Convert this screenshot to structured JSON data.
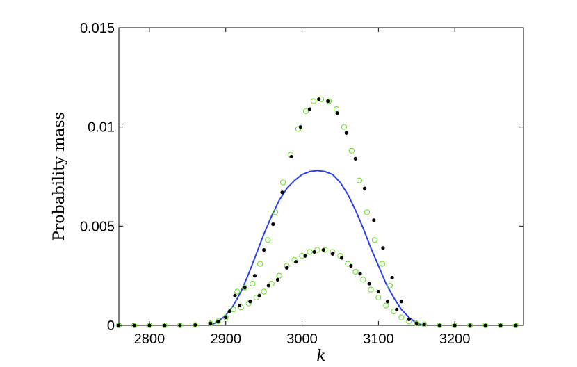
{
  "chart_data": {
    "type": "line",
    "title": "",
    "xlabel": "k",
    "ylabel": "Probability mass",
    "xlim": [
      2760,
      3290
    ],
    "ylim": [
      0,
      0.015
    ],
    "xticks": [
      2800,
      2900,
      3000,
      3100,
      3200
    ],
    "xtick_labels": [
      "2800",
      "2900",
      "3000",
      "3100",
      "3200"
    ],
    "yticks": [
      0,
      0.005,
      0.01,
      0.015
    ],
    "ytick_labels": [
      "0",
      "0.005",
      "0.01",
      "0.015"
    ],
    "grid": false,
    "legend": "none",
    "series": [
      {
        "style": "line",
        "color": "#2b3ff0",
        "points": [
          [
            2880,
            0.0
          ],
          [
            2890,
            0.0002
          ],
          [
            2900,
            0.0005
          ],
          [
            2910,
            0.001
          ],
          [
            2920,
            0.0017
          ],
          [
            2930,
            0.0026
          ],
          [
            2940,
            0.0036
          ],
          [
            2950,
            0.0046
          ],
          [
            2960,
            0.0055
          ],
          [
            2970,
            0.0063
          ],
          [
            2980,
            0.0069
          ],
          [
            2990,
            0.0073
          ],
          [
            3000,
            0.0076
          ],
          [
            3010,
            0.00775
          ],
          [
            3020,
            0.0078
          ],
          [
            3030,
            0.00775
          ],
          [
            3040,
            0.0076
          ],
          [
            3050,
            0.0072
          ],
          [
            3060,
            0.0066
          ],
          [
            3070,
            0.0058
          ],
          [
            3080,
            0.0049
          ],
          [
            3090,
            0.0039
          ],
          [
            3100,
            0.003
          ],
          [
            3110,
            0.0021
          ],
          [
            3120,
            0.0014
          ],
          [
            3130,
            0.0008
          ],
          [
            3140,
            0.0004
          ],
          [
            3150,
            0.0001
          ],
          [
            3160,
            0.0
          ]
        ]
      },
      {
        "style": "circles",
        "color": "#66dd22",
        "points": [
          [
            2760,
            0.0
          ],
          [
            2780,
            0.0
          ],
          [
            2800,
            0.0
          ],
          [
            2820,
            0.0
          ],
          [
            2840,
            0.0
          ],
          [
            2860,
            2e-05
          ],
          [
            2880,
            0.0001
          ],
          [
            2890,
            0.0002
          ],
          [
            2900,
            0.0004
          ],
          [
            2910,
            0.0008
          ],
          [
            2915,
            0.0017
          ],
          [
            2920,
            0.0009
          ],
          [
            2925,
            0.0019
          ],
          [
            2930,
            0.0011
          ],
          [
            2935,
            0.0021
          ],
          [
            2940,
            0.0014
          ],
          [
            2945,
            0.0031
          ],
          [
            2950,
            0.0017
          ],
          [
            2955,
            0.0043
          ],
          [
            2960,
            0.0021
          ],
          [
            2965,
            0.0057
          ],
          [
            2970,
            0.0025
          ],
          [
            2975,
            0.0072
          ],
          [
            2980,
            0.003
          ],
          [
            2985,
            0.0086
          ],
          [
            2990,
            0.0033
          ],
          [
            2995,
            0.0099
          ],
          [
            3000,
            0.0035
          ],
          [
            3005,
            0.0108
          ],
          [
            3010,
            0.0037
          ],
          [
            3015,
            0.0113
          ],
          [
            3020,
            0.0038
          ],
          [
            3025,
            0.0114
          ],
          [
            3030,
            0.0038
          ],
          [
            3035,
            0.0113
          ],
          [
            3040,
            0.0037
          ],
          [
            3045,
            0.0109
          ],
          [
            3050,
            0.0035
          ],
          [
            3055,
            0.01
          ],
          [
            3060,
            0.0031
          ],
          [
            3065,
            0.0088
          ],
          [
            3070,
            0.0027
          ],
          [
            3075,
            0.0073
          ],
          [
            3080,
            0.0023
          ],
          [
            3085,
            0.0057
          ],
          [
            3090,
            0.0018
          ],
          [
            3095,
            0.0043
          ],
          [
            3100,
            0.0014
          ],
          [
            3105,
            0.0031
          ],
          [
            3110,
            0.001
          ],
          [
            3115,
            0.002
          ],
          [
            3120,
            0.0007
          ],
          [
            3130,
            0.0004
          ],
          [
            3140,
            0.0002
          ],
          [
            3150,
            0.0001
          ],
          [
            3160,
            5e-05
          ],
          [
            3180,
            0.0
          ],
          [
            3200,
            0.0
          ],
          [
            3220,
            0.0
          ],
          [
            3240,
            0.0
          ],
          [
            3260,
            0.0
          ],
          [
            3280,
            0.0
          ]
        ]
      },
      {
        "style": "dots",
        "color": "#000000",
        "points": [
          [
            2760,
            0.0
          ],
          [
            2780,
            0.0
          ],
          [
            2800,
            0.0
          ],
          [
            2820,
            0.0
          ],
          [
            2840,
            0.0
          ],
          [
            2860,
            2e-05
          ],
          [
            2880,
            0.0001
          ],
          [
            2890,
            0.0002
          ],
          [
            2900,
            0.0004
          ],
          [
            2905,
            0.0007
          ],
          [
            2912,
            0.0015
          ],
          [
            2918,
            0.001
          ],
          [
            2925,
            0.0019
          ],
          [
            2932,
            0.0012
          ],
          [
            2938,
            0.0025
          ],
          [
            2944,
            0.0015
          ],
          [
            2950,
            0.0038
          ],
          [
            2956,
            0.002
          ],
          [
            2962,
            0.0051
          ],
          [
            2968,
            0.0023
          ],
          [
            2974,
            0.0067
          ],
          [
            2980,
            0.0029
          ],
          [
            2986,
            0.0085
          ],
          [
            2992,
            0.0032
          ],
          [
            2998,
            0.01
          ],
          [
            3004,
            0.0035
          ],
          [
            3010,
            0.0109
          ],
          [
            3016,
            0.0037
          ],
          [
            3022,
            0.0114
          ],
          [
            3028,
            0.0038
          ],
          [
            3034,
            0.0113
          ],
          [
            3040,
            0.0036
          ],
          [
            3046,
            0.0107
          ],
          [
            3052,
            0.0034
          ],
          [
            3058,
            0.0097
          ],
          [
            3064,
            0.003
          ],
          [
            3070,
            0.0084
          ],
          [
            3076,
            0.0026
          ],
          [
            3082,
            0.0069
          ],
          [
            3088,
            0.0021
          ],
          [
            3094,
            0.0053
          ],
          [
            3100,
            0.0017
          ],
          [
            3106,
            0.0039
          ],
          [
            3112,
            0.0012
          ],
          [
            3118,
            0.0024
          ],
          [
            3124,
            0.0008
          ],
          [
            3130,
            0.0012
          ],
          [
            3140,
            0.0003
          ],
          [
            3150,
            0.0001
          ],
          [
            3160,
            5e-05
          ],
          [
            3180,
            0.0
          ],
          [
            3200,
            0.0
          ],
          [
            3220,
            0.0
          ],
          [
            3240,
            0.0
          ],
          [
            3260,
            0.0
          ],
          [
            3280,
            0.0
          ]
        ]
      }
    ]
  }
}
